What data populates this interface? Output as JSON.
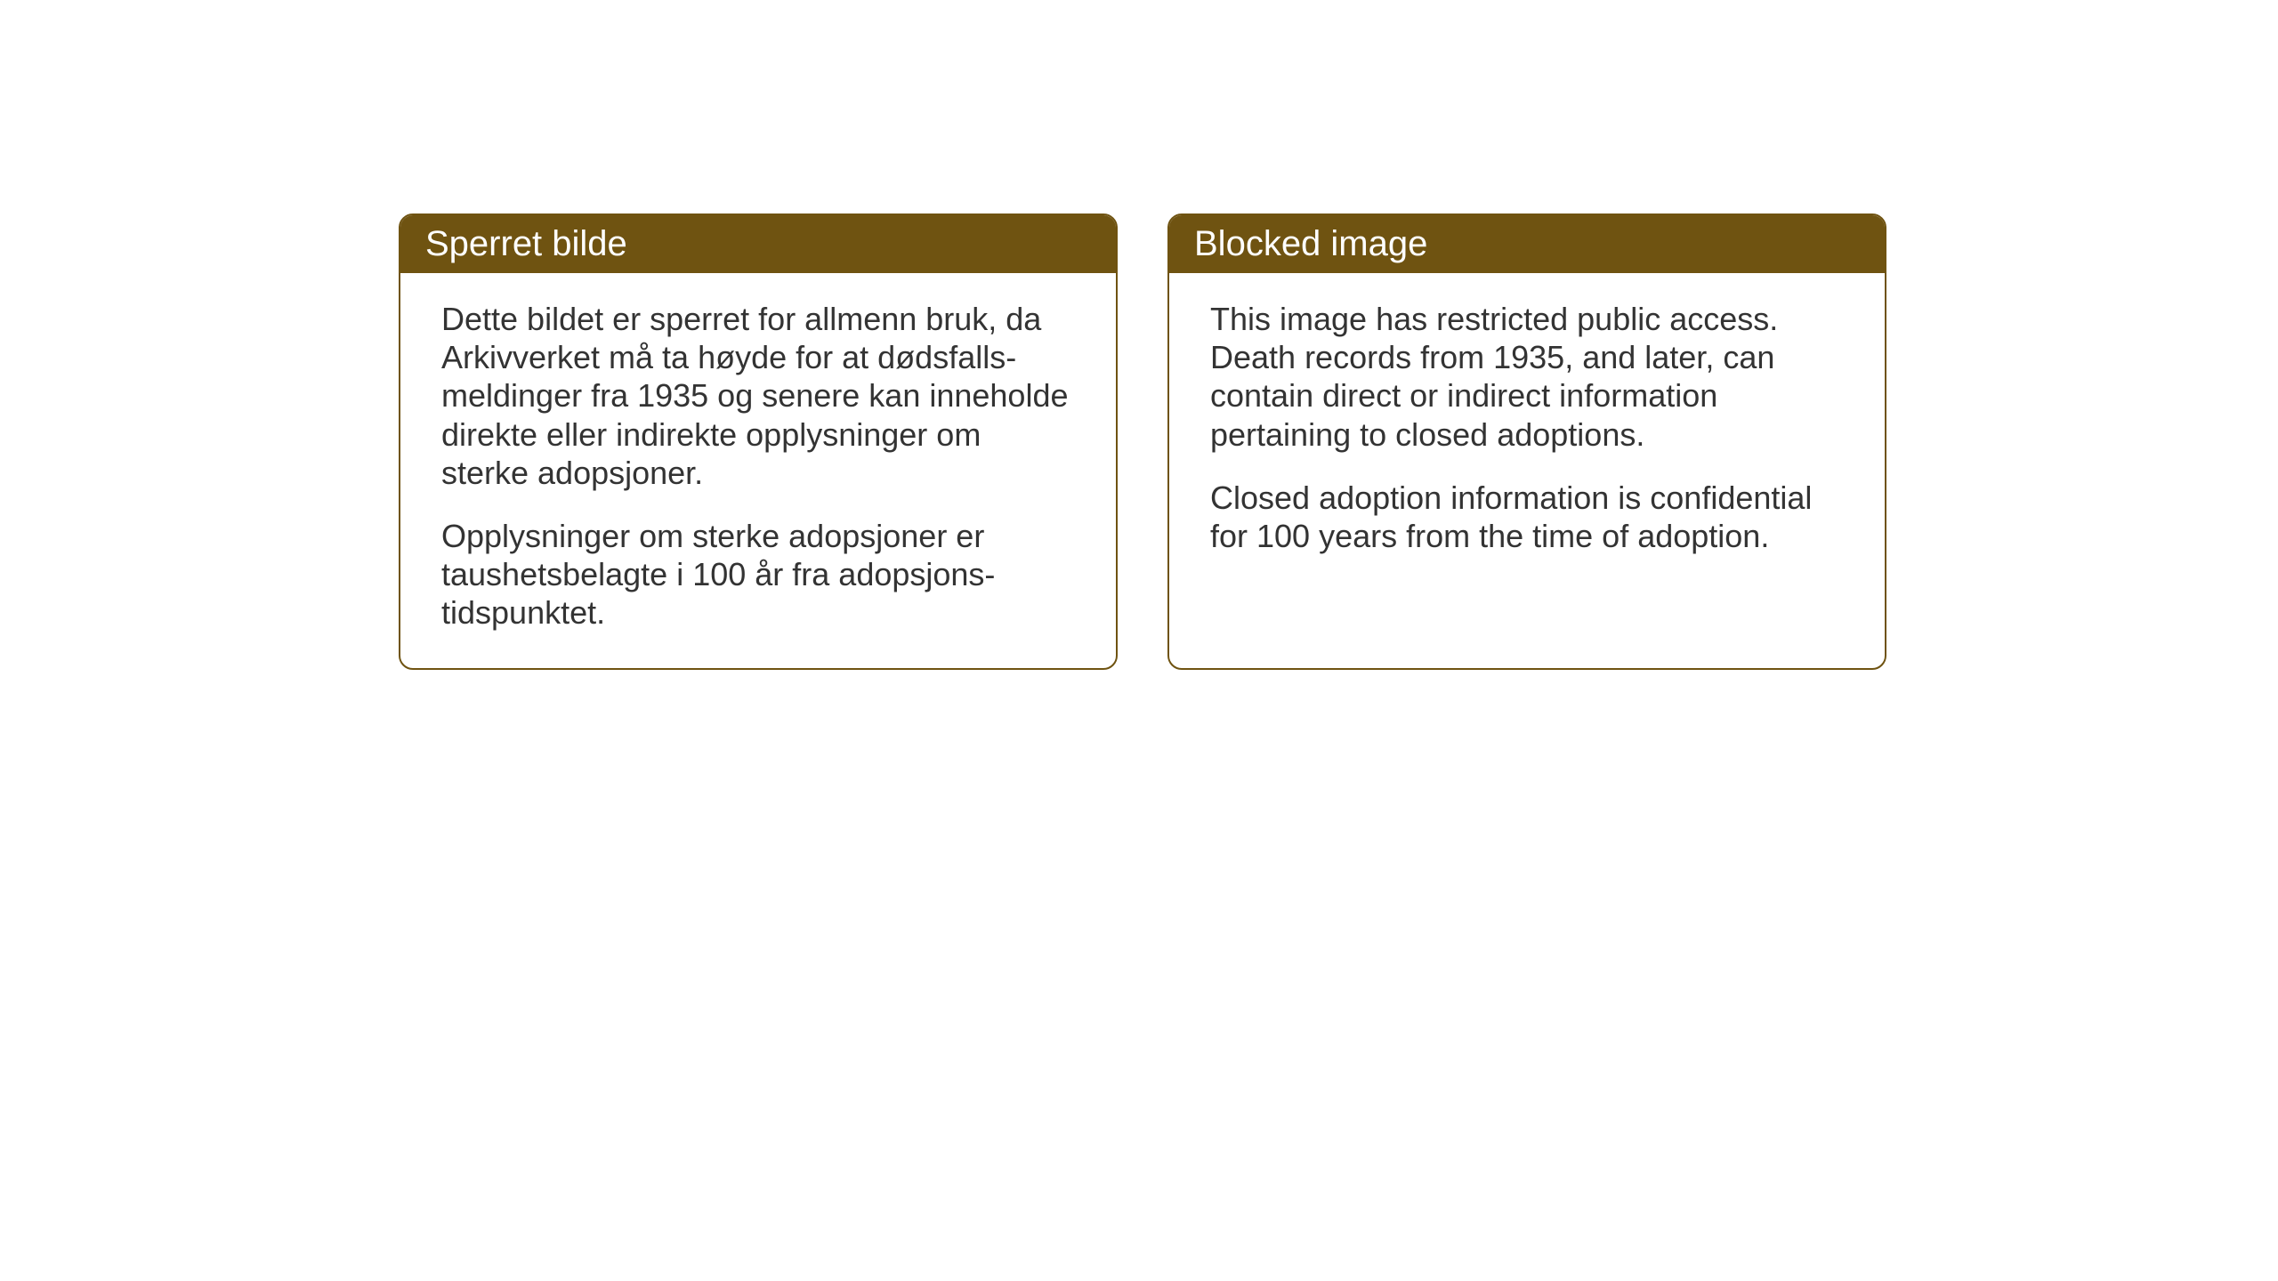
{
  "layout": {
    "background_color": "#ffffff",
    "card_border_color": "#6f5311",
    "card_border_width": 2,
    "card_border_radius": 16,
    "header_background_color": "#6f5311",
    "header_text_color": "#ffffff",
    "body_text_color": "#333333",
    "header_font_size": 40,
    "body_font_size": 36
  },
  "cards": {
    "norwegian": {
      "title": "Sperret bilde",
      "paragraph1": "Dette bildet er sperret for allmenn bruk, da Arkivverket må ta høyde for at dødsfalls-meldinger fra 1935 og senere kan inneholde direkte eller indirekte opplysninger om sterke adopsjoner.",
      "paragraph2": "Opplysninger om sterke adopsjoner er taushetsbelagte i 100 år fra adopsjons-tidspunktet."
    },
    "english": {
      "title": "Blocked image",
      "paragraph1": "This image has restricted public access. Death records from 1935, and later, can contain direct or indirect information pertaining to closed adoptions.",
      "paragraph2": "Closed adoption information is confidential for 100 years from the time of adoption."
    }
  }
}
